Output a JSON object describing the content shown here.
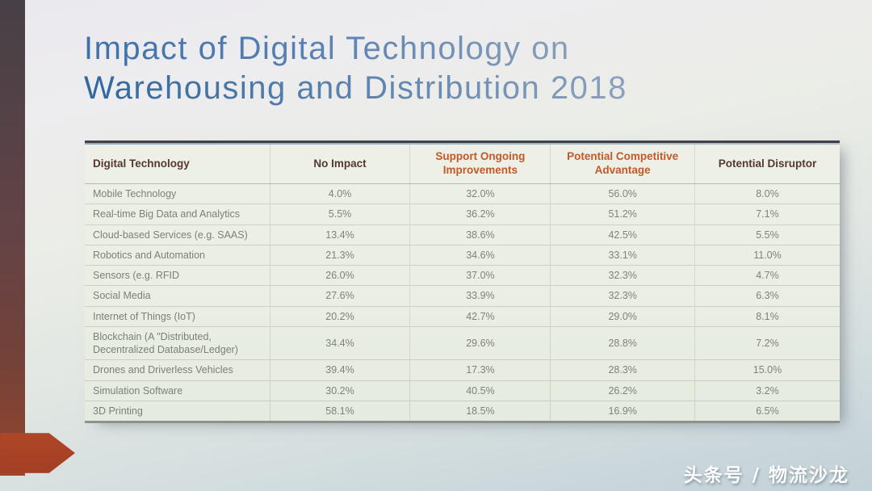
{
  "slide": {
    "title_line1": "Impact of Digital Technology on",
    "title_line2": "Warehousing and Distribution 2018"
  },
  "table": {
    "columns": [
      "Digital Technology",
      "No Impact",
      "Support Ongoing Improvements",
      "Potential Competitive Advantage",
      "Potential Disruptor"
    ],
    "rows": [
      [
        "Mobile Technology",
        "4.0%",
        "32.0%",
        "56.0%",
        "8.0%"
      ],
      [
        "Real-time Big Data and Analytics",
        "5.5%",
        "36.2%",
        "51.2%",
        "7.1%"
      ],
      [
        "Cloud-based Services (e.g. SAAS)",
        "13.4%",
        "38.6%",
        "42.5%",
        "5.5%"
      ],
      [
        "Robotics and Automation",
        "21.3%",
        "34.6%",
        "33.1%",
        "11.0%"
      ],
      [
        "Sensors (e.g. RFID",
        "26.0%",
        "37.0%",
        "32.3%",
        "4.7%"
      ],
      [
        "Social Media",
        "27.6%",
        "33.9%",
        "32.3%",
        "6.3%"
      ],
      [
        "Internet of Things (IoT)",
        "20.2%",
        "42.7%",
        "29.0%",
        "8.1%"
      ],
      [
        "Blockchain (A \"Distributed, Decentralized Database/Ledger)",
        "34.4%",
        "29.6%",
        "28.8%",
        "7.2%"
      ],
      [
        "Drones and Driverless Vehicles",
        "39.4%",
        "17.3%",
        "28.3%",
        "15.0%"
      ],
      [
        "Simulation Software",
        "30.2%",
        "40.5%",
        "26.2%",
        "3.2%"
      ],
      [
        "3D Printing",
        "58.1%",
        "18.5%",
        "16.9%",
        "6.5%"
      ]
    ]
  },
  "watermark": "头条号 / 物流沙龙",
  "colors": {
    "title_blue": "#4f7cb2",
    "header_orange": "#c05a28",
    "header_brown": "#54392e",
    "body_text": "#7e8378",
    "accent_bar_red": "#8a4431",
    "arrow_red": "#b04628",
    "watermark_white": "#fdfdfd"
  }
}
